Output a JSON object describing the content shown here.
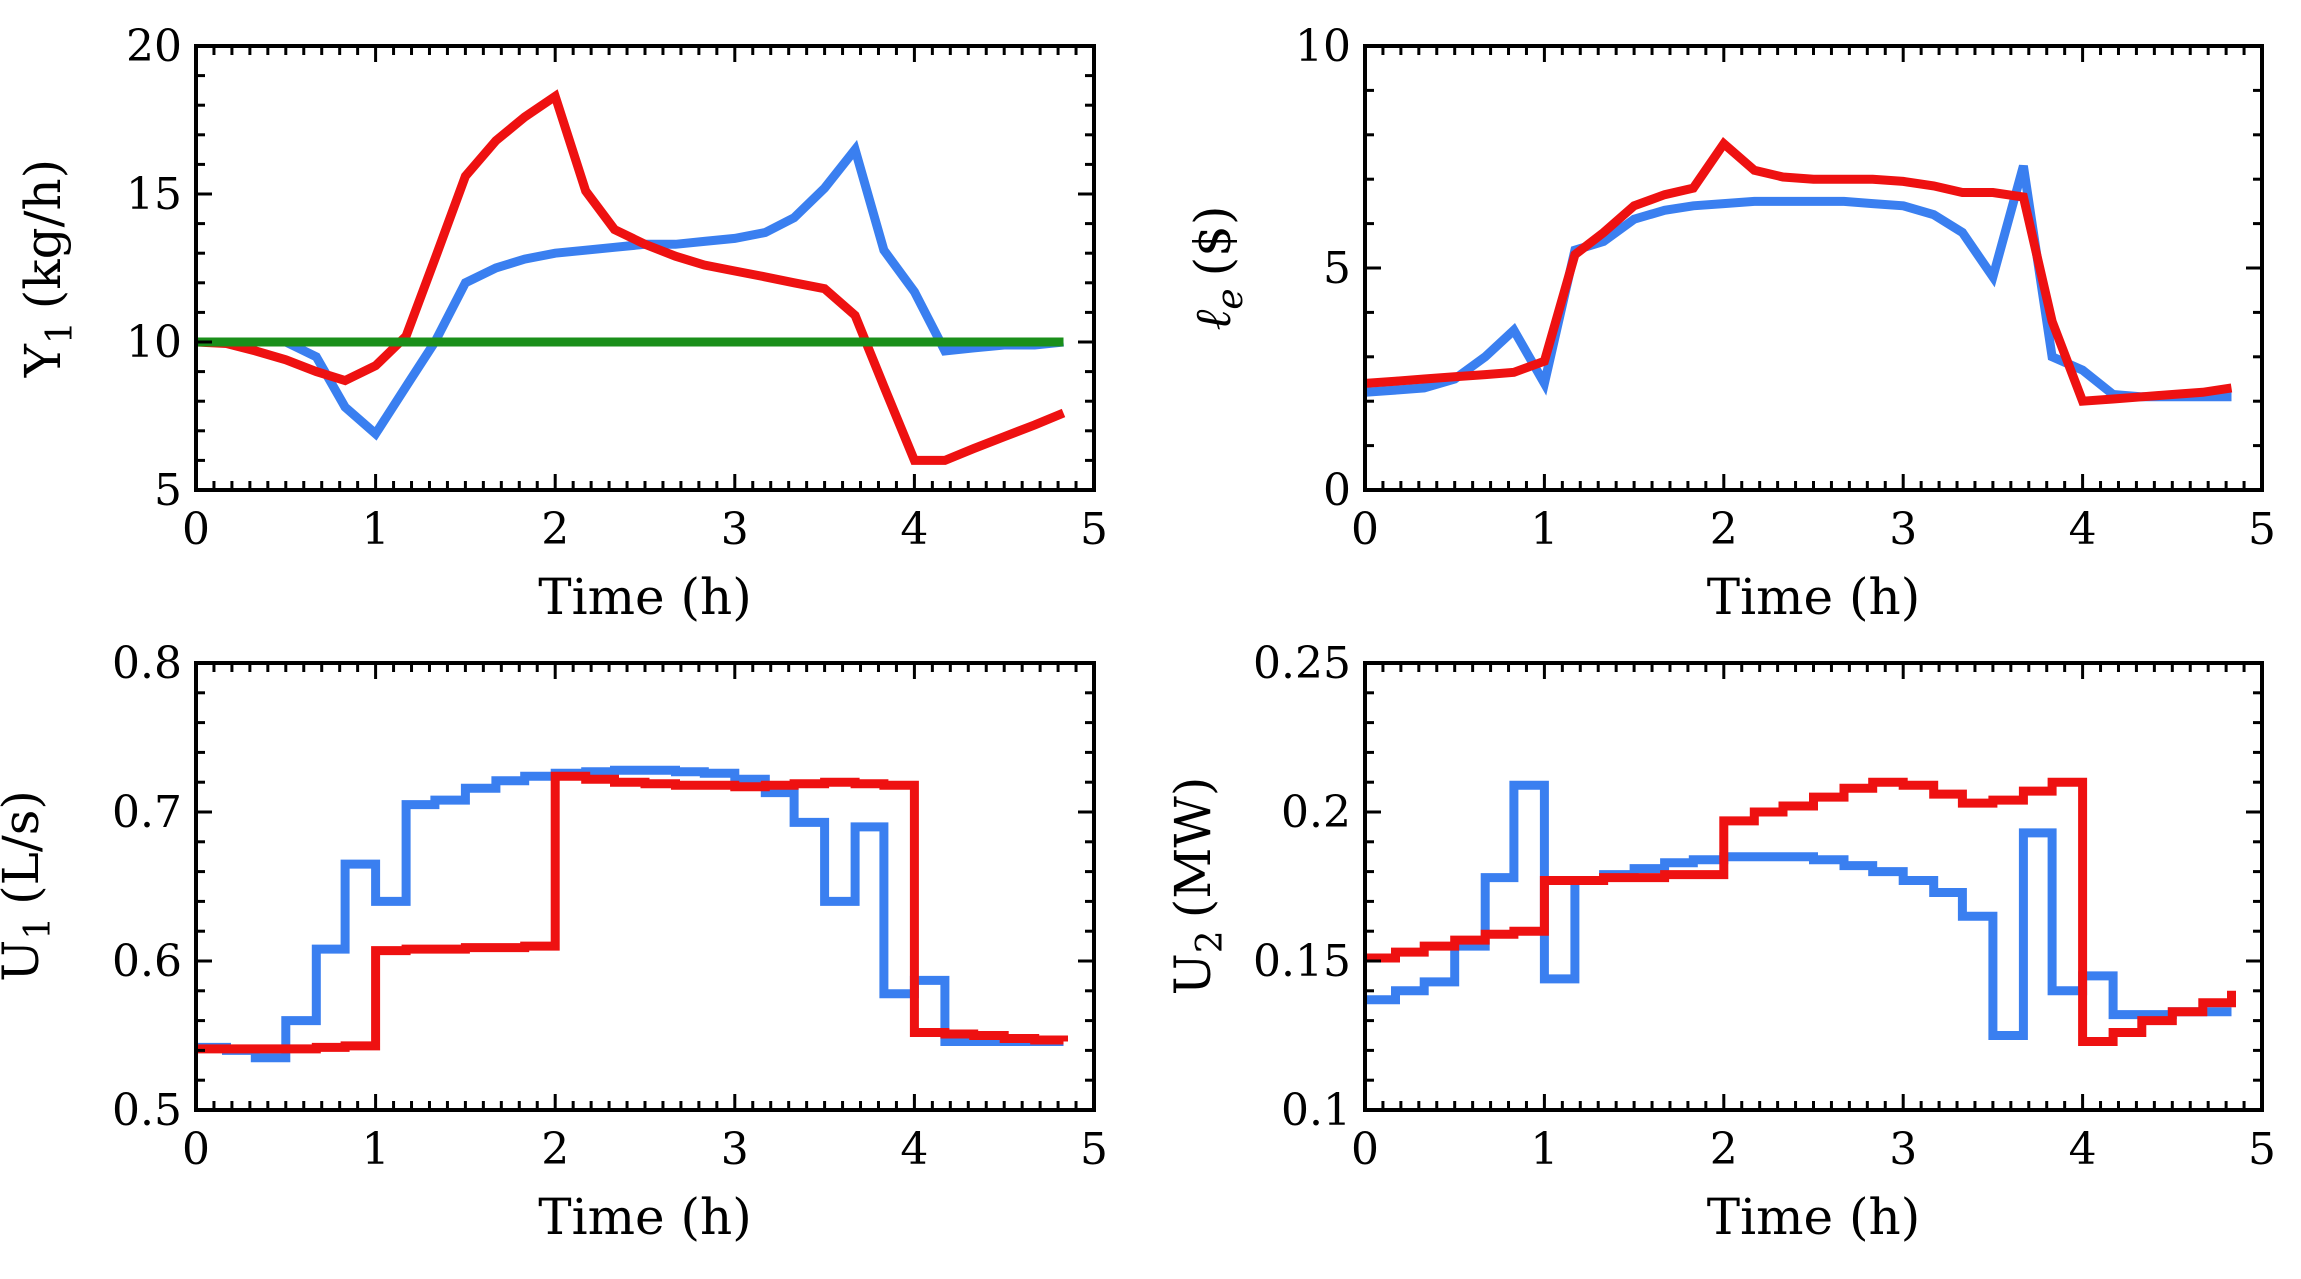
{
  "colors": {
    "series_a": "#3a7ff0",
    "series_b": "#ee1111",
    "reference": "#1a8f1a"
  },
  "chart_data": [
    {
      "id": "y1",
      "type": "line",
      "xlabel": "Time (h)",
      "ylabel": "Y",
      "ylabel_sub": "1",
      "ylabel_unit": "(kg/h)",
      "xlim": [
        0,
        5
      ],
      "ylim": [
        5,
        20
      ],
      "xticks": [
        0,
        1,
        2,
        3,
        4,
        5
      ],
      "yticks": [
        5,
        10,
        15,
        20
      ],
      "xtick_labels": [
        "0",
        "1",
        "2",
        "3",
        "4",
        "5"
      ],
      "ytick_labels": [
        "5",
        "10",
        "15",
        "20"
      ],
      "series": [
        {
          "name": "blue",
          "color": "#3a7ff0",
          "step": false,
          "x": [
            0,
            0.5,
            0.67,
            0.83,
            1.0,
            1.17,
            1.33,
            1.5,
            1.67,
            1.83,
            2.0,
            2.17,
            2.33,
            2.5,
            2.67,
            2.83,
            3.0,
            3.17,
            3.33,
            3.5,
            3.67,
            3.83,
            4.0,
            4.17,
            4.33,
            4.5,
            4.67,
            4.83
          ],
          "y": [
            10,
            10,
            9.5,
            7.8,
            6.9,
            8.5,
            10,
            12,
            12.5,
            12.8,
            13,
            13.1,
            13.2,
            13.3,
            13.3,
            13.4,
            13.5,
            13.7,
            14.2,
            15.2,
            16.5,
            13.1,
            11.7,
            9.7,
            9.8,
            9.9,
            9.9,
            10
          ]
        },
        {
          "name": "red",
          "color": "#ee1111",
          "step": false,
          "x": [
            0,
            0.17,
            0.33,
            0.5,
            0.67,
            0.83,
            1.0,
            1.17,
            1.33,
            1.5,
            1.67,
            1.83,
            2.0,
            2.17,
            2.33,
            2.5,
            2.67,
            2.83,
            3.0,
            3.17,
            3.33,
            3.5,
            3.67,
            3.83,
            4.0,
            4.17,
            4.33,
            4.5,
            4.67,
            4.83
          ],
          "y": [
            10,
            9.95,
            9.7,
            9.4,
            9.0,
            8.7,
            9.2,
            10.2,
            12.8,
            15.6,
            16.8,
            17.6,
            18.3,
            15.1,
            13.8,
            13.3,
            12.9,
            12.6,
            12.4,
            12.2,
            12.0,
            11.8,
            10.9,
            8.5,
            6.0,
            6.0,
            6.4,
            6.8,
            7.2,
            7.6
          ]
        },
        {
          "name": "green",
          "color": "#1a8f1a",
          "step": false,
          "x": [
            0,
            4.83
          ],
          "y": [
            10,
            10
          ]
        }
      ]
    },
    {
      "id": "le",
      "type": "line",
      "xlabel": "Time (h)",
      "ylabel": "ℓ",
      "ylabel_sub": "e",
      "ylabel_unit": "($)",
      "xlim": [
        0,
        5
      ],
      "ylim": [
        0,
        10
      ],
      "xticks": [
        0,
        1,
        2,
        3,
        4,
        5
      ],
      "yticks": [
        0,
        5,
        10
      ],
      "xtick_labels": [
        "0",
        "1",
        "2",
        "3",
        "4",
        "5"
      ],
      "ytick_labels": [
        "0",
        "5",
        "10"
      ],
      "series": [
        {
          "name": "blue",
          "color": "#3a7ff0",
          "step": false,
          "x": [
            0,
            0.17,
            0.33,
            0.5,
            0.67,
            0.83,
            1.0,
            1.17,
            1.33,
            1.5,
            1.67,
            1.83,
            2.0,
            2.17,
            2.33,
            2.5,
            2.67,
            2.83,
            3.0,
            3.17,
            3.33,
            3.5,
            3.67,
            3.83,
            4.0,
            4.17,
            4.33,
            4.5,
            4.67,
            4.83
          ],
          "y": [
            2.2,
            2.25,
            2.3,
            2.5,
            3.0,
            3.6,
            2.4,
            5.4,
            5.6,
            6.1,
            6.3,
            6.4,
            6.45,
            6.5,
            6.5,
            6.5,
            6.5,
            6.45,
            6.4,
            6.2,
            5.8,
            4.8,
            7.3,
            3.0,
            2.7,
            2.15,
            2.1,
            2.1,
            2.1,
            2.1
          ]
        },
        {
          "name": "red",
          "color": "#ee1111",
          "step": false,
          "x": [
            0,
            0.17,
            0.33,
            0.5,
            0.67,
            0.83,
            1.0,
            1.17,
            1.33,
            1.5,
            1.67,
            1.83,
            2.0,
            2.17,
            2.33,
            2.5,
            2.67,
            2.83,
            3.0,
            3.17,
            3.33,
            3.5,
            3.67,
            3.83,
            4.0,
            4.17,
            4.33,
            4.5,
            4.67,
            4.83
          ],
          "y": [
            2.4,
            2.45,
            2.5,
            2.55,
            2.6,
            2.65,
            2.9,
            5.3,
            5.8,
            6.4,
            6.65,
            6.8,
            7.8,
            7.2,
            7.05,
            7.0,
            7.0,
            7.0,
            6.95,
            6.85,
            6.7,
            6.7,
            6.6,
            3.8,
            2.0,
            2.05,
            2.1,
            2.15,
            2.2,
            2.3
          ]
        }
      ]
    },
    {
      "id": "u1",
      "type": "line",
      "xlabel": "Time (h)",
      "ylabel": "U",
      "ylabel_sub": "1",
      "ylabel_unit": "(L/s)",
      "xlim": [
        0,
        5
      ],
      "ylim": [
        0.5,
        0.8
      ],
      "xticks": [
        0,
        1,
        2,
        3,
        4,
        5
      ],
      "yticks": [
        0.5,
        0.6,
        0.7,
        0.8
      ],
      "xtick_labels": [
        "0",
        "1",
        "2",
        "3",
        "4",
        "5"
      ],
      "ytick_labels": [
        "0.5",
        "0.6",
        "0.7",
        "0.8"
      ],
      "series": [
        {
          "name": "blue",
          "color": "#3a7ff0",
          "step": true,
          "x": [
            0,
            0.17,
            0.33,
            0.5,
            0.67,
            0.83,
            1.0,
            1.17,
            1.33,
            1.5,
            1.67,
            1.83,
            2.0,
            2.17,
            2.33,
            2.5,
            2.67,
            2.83,
            3.0,
            3.17,
            3.33,
            3.5,
            3.67,
            3.83,
            4.0,
            4.17,
            4.33,
            4.5,
            4.67,
            4.83
          ],
          "y": [
            0.542,
            0.54,
            0.535,
            0.56,
            0.608,
            0.665,
            0.64,
            0.705,
            0.708,
            0.716,
            0.721,
            0.724,
            0.726,
            0.727,
            0.728,
            0.728,
            0.727,
            0.726,
            0.722,
            0.713,
            0.693,
            0.64,
            0.69,
            0.578,
            0.587,
            0.546,
            0.546,
            0.546,
            0.546,
            0.546
          ]
        },
        {
          "name": "red",
          "color": "#ee1111",
          "step": true,
          "x": [
            0,
            0.17,
            0.33,
            0.5,
            0.67,
            0.83,
            1.0,
            1.17,
            1.33,
            1.5,
            1.67,
            1.83,
            2.0,
            2.17,
            2.33,
            2.5,
            2.67,
            2.83,
            3.0,
            3.17,
            3.33,
            3.5,
            3.67,
            3.83,
            4.0,
            4.17,
            4.33,
            4.5,
            4.67,
            4.83
          ],
          "y": [
            0.541,
            0.541,
            0.541,
            0.541,
            0.542,
            0.543,
            0.607,
            0.608,
            0.608,
            0.609,
            0.609,
            0.61,
            0.724,
            0.722,
            0.72,
            0.719,
            0.718,
            0.718,
            0.717,
            0.718,
            0.719,
            0.72,
            0.719,
            0.718,
            0.552,
            0.551,
            0.55,
            0.548,
            0.547,
            0.546
          ]
        }
      ]
    },
    {
      "id": "u2",
      "type": "line",
      "xlabel": "Time (h)",
      "ylabel": "U",
      "ylabel_sub": "2",
      "ylabel_unit": "(MW)",
      "xlim": [
        0,
        5
      ],
      "ylim": [
        0.1,
        0.25
      ],
      "xticks": [
        0,
        1,
        2,
        3,
        4,
        5
      ],
      "yticks": [
        0.1,
        0.15,
        0.2,
        0.25
      ],
      "xtick_labels": [
        "0",
        "1",
        "2",
        "3",
        "4",
        "5"
      ],
      "ytick_labels": [
        "0.1",
        "0.15",
        "0.2",
        "0.25"
      ],
      "series": [
        {
          "name": "blue",
          "color": "#3a7ff0",
          "step": true,
          "x": [
            0,
            0.17,
            0.33,
            0.5,
            0.67,
            0.83,
            1.0,
            1.17,
            1.33,
            1.5,
            1.67,
            1.83,
            2.0,
            2.17,
            2.33,
            2.5,
            2.67,
            2.83,
            3.0,
            3.17,
            3.33,
            3.5,
            3.67,
            3.83,
            4.0,
            4.17,
            4.33,
            4.5,
            4.67,
            4.83
          ],
          "y": [
            0.137,
            0.14,
            0.143,
            0.155,
            0.178,
            0.209,
            0.144,
            0.177,
            0.179,
            0.181,
            0.183,
            0.184,
            0.185,
            0.185,
            0.185,
            0.184,
            0.182,
            0.18,
            0.177,
            0.173,
            0.165,
            0.125,
            0.193,
            0.14,
            0.145,
            0.132,
            0.132,
            0.133,
            0.133,
            0.133
          ]
        },
        {
          "name": "red",
          "color": "#ee1111",
          "step": true,
          "x": [
            0,
            0.17,
            0.33,
            0.5,
            0.67,
            0.83,
            1.0,
            1.17,
            1.33,
            1.5,
            1.67,
            1.83,
            2.0,
            2.17,
            2.33,
            2.5,
            2.67,
            2.83,
            3.0,
            3.17,
            3.33,
            3.5,
            3.67,
            3.83,
            4.0,
            4.17,
            4.33,
            4.5,
            4.67,
            4.83
          ],
          "y": [
            0.151,
            0.153,
            0.155,
            0.157,
            0.159,
            0.16,
            0.177,
            0.177,
            0.178,
            0.178,
            0.179,
            0.179,
            0.197,
            0.2,
            0.202,
            0.205,
            0.208,
            0.21,
            0.209,
            0.206,
            0.203,
            0.204,
            0.207,
            0.21,
            0.123,
            0.126,
            0.13,
            0.133,
            0.136,
            0.14
          ]
        }
      ]
    }
  ]
}
